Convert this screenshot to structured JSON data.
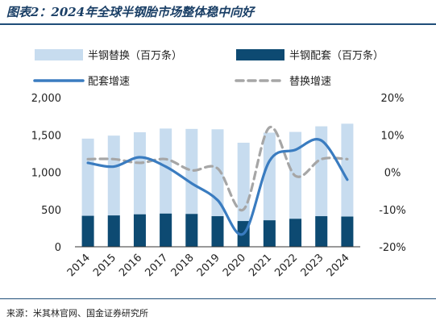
{
  "figure": {
    "title": "图表2：2024年全球半钢胎市场整体稳中向好",
    "source": "来源：米其林官网、国金证券研究所"
  },
  "chart_data": {
    "type": "bar",
    "categories": [
      "2014",
      "2015",
      "2016",
      "2017",
      "2018",
      "2019",
      "2020",
      "2021",
      "2022",
      "2023",
      "2024"
    ],
    "series": [
      {
        "name": "半钢替换（百万条）",
        "kind": "bar",
        "axis": "left",
        "color": "#c7dcef",
        "values": [
          1450,
          1490,
          1535,
          1585,
          1580,
          1575,
          1395,
          1530,
          1540,
          1615,
          1650
        ]
      },
      {
        "name": "半钢配套（百万条）",
        "kind": "bar",
        "axis": "left",
        "color": "#0d4a72",
        "values": [
          415,
          420,
          435,
          445,
          440,
          410,
          345,
          355,
          375,
          410,
          405
        ]
      },
      {
        "name": "配套增速",
        "kind": "line",
        "axis": "right",
        "color": "#3a7cc0",
        "values": [
          2.5,
          1.5,
          4.0,
          1.5,
          -3.0,
          -7.5,
          -16.5,
          3.0,
          6.0,
          8.5,
          -2.0
        ]
      },
      {
        "name": "替换增速",
        "kind": "line",
        "axis": "right",
        "color": "#a6a6a6",
        "dashed": true,
        "values": [
          3.5,
          3.5,
          2.5,
          3.5,
          0.5,
          1.0,
          -10.0,
          12.0,
          -1.0,
          3.5,
          3.5
        ]
      }
    ],
    "y_left": {
      "min": 0,
      "max": 2000,
      "ticks": [
        "0",
        "500",
        "1,000",
        "1,500",
        "2,000"
      ]
    },
    "y_right": {
      "min": -20,
      "max": 20,
      "ticks": [
        "-20%",
        "-10%",
        "0%",
        "10%",
        "20%"
      ]
    },
    "grid": false,
    "legend_position": "top"
  }
}
